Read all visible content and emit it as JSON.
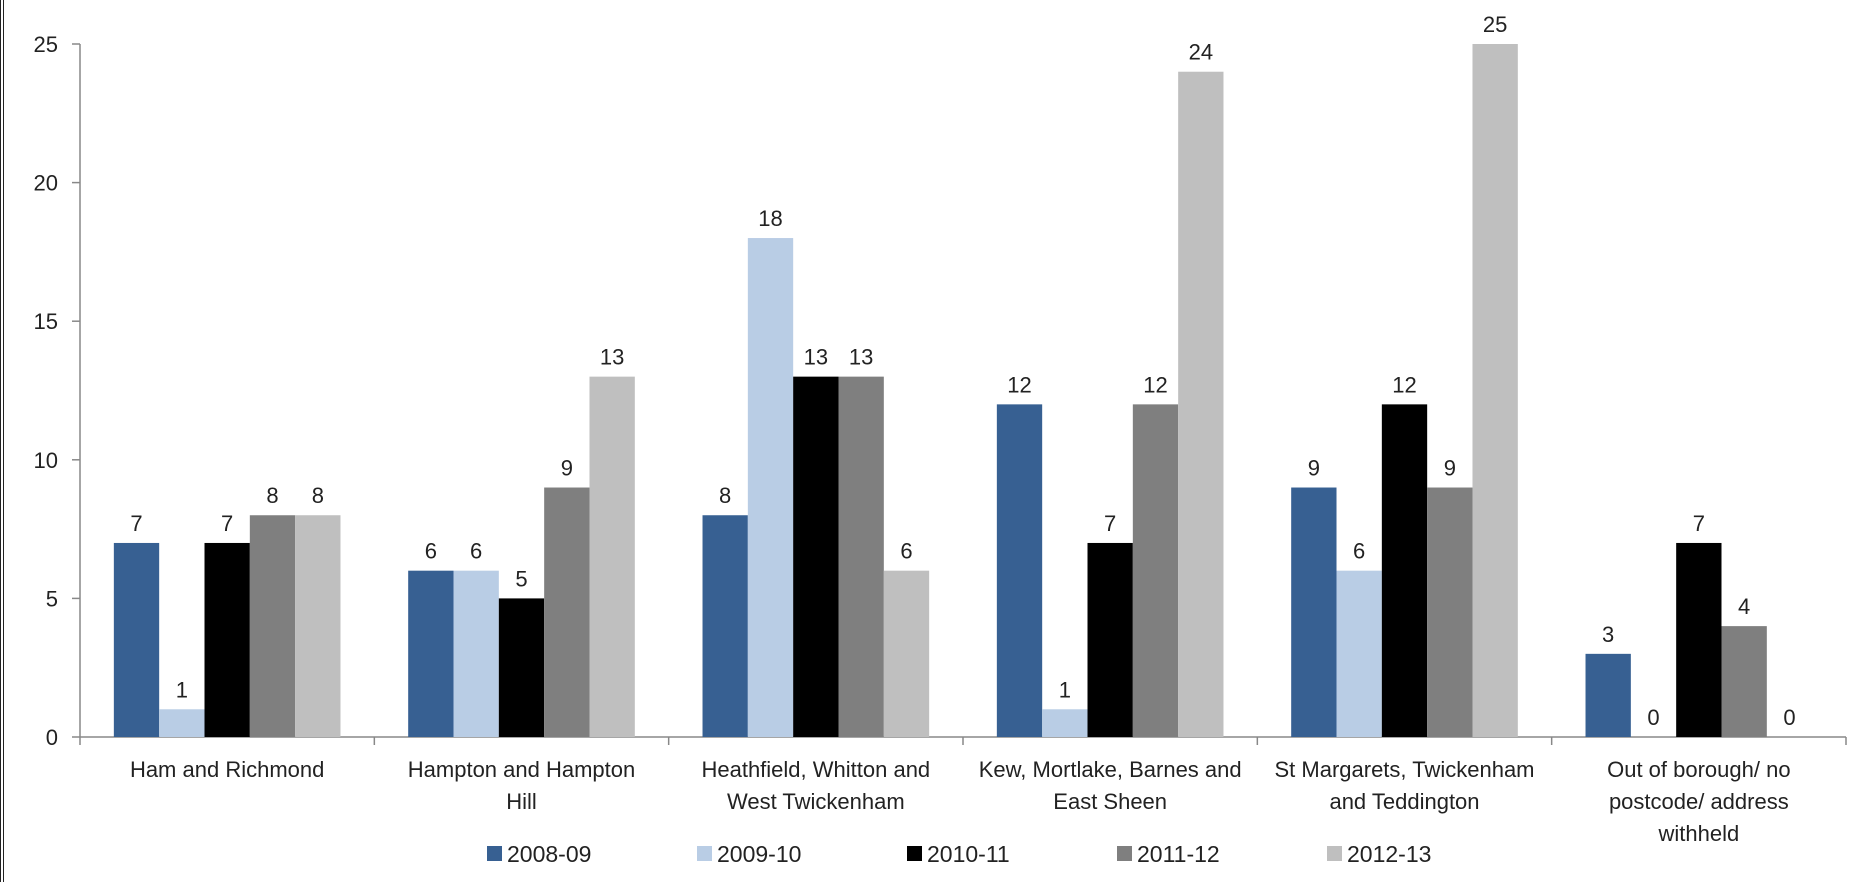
{
  "chart_data": {
    "type": "bar",
    "title": "",
    "xlabel": "",
    "ylabel": "",
    "ylim": [
      0,
      25
    ],
    "yticks": [
      0,
      5,
      10,
      15,
      20,
      25
    ],
    "grid": false,
    "legend_position": "bottom",
    "categories": [
      "Ham and Richmond",
      "Hampton and Hampton Hill",
      "Heathfield, Whitton and West Twickenham",
      "Kew, Mortlake, Barnes and East Sheen",
      "St Margarets, Twickenham and Teddington",
      "Out of borough/ no postcode/ address withheld"
    ],
    "category_lines": [
      [
        "Ham and Richmond"
      ],
      [
        "Hampton and Hampton",
        "Hill"
      ],
      [
        "Heathfield, Whitton and",
        "West Twickenham"
      ],
      [
        "Kew, Mortlake, Barnes and",
        "East Sheen"
      ],
      [
        "St Margarets, Twickenham",
        "and Teddington"
      ],
      [
        "Out of borough/ no",
        "postcode/ address",
        "withheld"
      ]
    ],
    "series": [
      {
        "name": "2008-09",
        "color": "#376092",
        "values": [
          7,
          6,
          8,
          12,
          9,
          3
        ]
      },
      {
        "name": "2009-10",
        "color": "#B9CDE5",
        "values": [
          1,
          6,
          18,
          1,
          6,
          0
        ]
      },
      {
        "name": "2010-11",
        "color": "#000000",
        "values": [
          7,
          5,
          13,
          7,
          12,
          7
        ]
      },
      {
        "name": "2011-12",
        "color": "#7F7F7F",
        "values": [
          8,
          9,
          13,
          12,
          9,
          4
        ]
      },
      {
        "name": "2012-13",
        "color": "#BFBFBF",
        "values": [
          8,
          13,
          6,
          24,
          25,
          0
        ]
      }
    ]
  }
}
